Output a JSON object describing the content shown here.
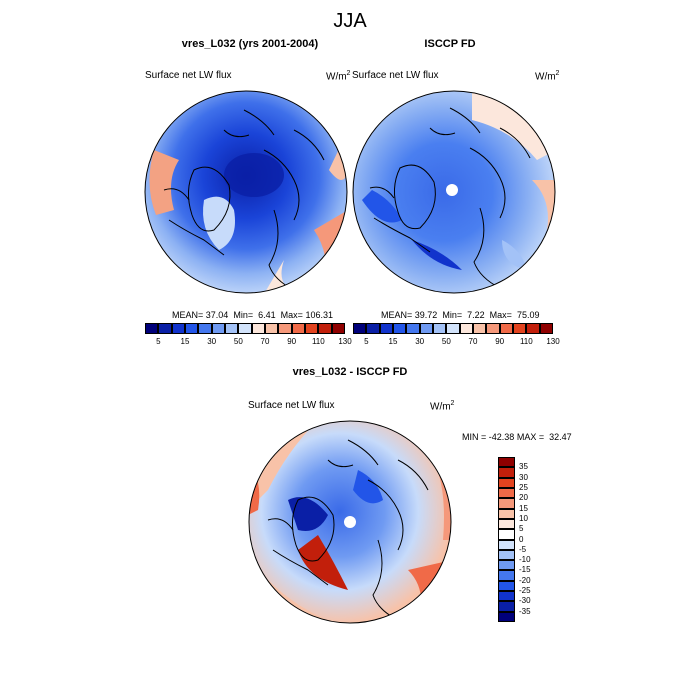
{
  "title": "JJA",
  "panels": [
    {
      "title": "vres_L032 (yrs 2001-2004)",
      "field_label": "Surface net LW flux",
      "units": "W/m",
      "units_sup": "2",
      "stats": {
        "mean_label": "MEAN=",
        "mean": "37.04",
        "min_label": "Min=",
        "min": "6.41",
        "max_label": "Max=",
        "max": "106.31"
      }
    },
    {
      "title": "ISCCP FD",
      "field_label": "Surface net LW flux",
      "units": "W/m",
      "units_sup": "2",
      "stats": {
        "mean_label": "MEAN=",
        "mean": "39.72",
        "min_label": "Min=",
        "min": "7.22",
        "max_label": "Max=",
        "max": "75.09"
      }
    },
    {
      "title": "vres_L032 - ISCCP FD",
      "field_label": "Surface net LW flux",
      "units": "W/m",
      "units_sup": "2",
      "stats": {
        "min_label": "MIN =",
        "min": "-42.38",
        "max_label": "MAX =",
        "max": "32.47"
      }
    }
  ],
  "colorbar_abs": {
    "tick_labels": [
      "5",
      "15",
      "30",
      "50",
      "70",
      "90",
      "110",
      "130"
    ],
    "colors": [
      "#00007a",
      "#0a1fa6",
      "#1133cc",
      "#2255e8",
      "#4477ee",
      "#6f9af2",
      "#a3c2f7",
      "#d2e3fb",
      "#fce7dc",
      "#f8c2a8",
      "#f5987a",
      "#f06a48",
      "#e2431f",
      "#c21f0b",
      "#8f0000"
    ]
  },
  "colorbar_diff": {
    "tick_labels": [
      "35",
      "30",
      "25",
      "20",
      "15",
      "10",
      "5",
      "0",
      "-5",
      "-10",
      "-15",
      "-20",
      "-25",
      "-30",
      "-35"
    ],
    "colors": [
      "#8f0000",
      "#c21f0b",
      "#e2431f",
      "#f06a48",
      "#f5987a",
      "#f8c2a8",
      "#fce7dc",
      "#ffffff",
      "#d2e3fb",
      "#a3c2f7",
      "#6f9af2",
      "#4477ee",
      "#2255e8",
      "#1133cc",
      "#0a1fa6",
      "#00007a"
    ]
  },
  "colors": {
    "land_outline": "#000000",
    "frame": "#000000"
  }
}
